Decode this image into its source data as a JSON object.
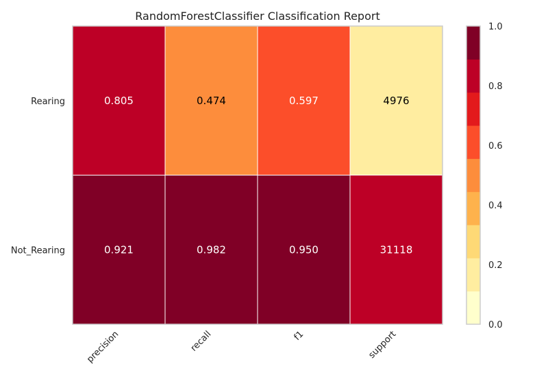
{
  "chart_data": {
    "type": "heatmap",
    "title": "RandomForestClassifier Classification Report",
    "rows": [
      "Rearing",
      "Not_Rearing"
    ],
    "columns": [
      "precision",
      "recall",
      "f1",
      "support"
    ],
    "cells": [
      [
        {
          "value": 0.805,
          "label": "0.805"
        },
        {
          "value": 0.474,
          "label": "0.474"
        },
        {
          "value": 0.597,
          "label": "0.597"
        },
        {
          "value": 0.138,
          "label": "4976"
        }
      ],
      [
        {
          "value": 0.921,
          "label": "0.921"
        },
        {
          "value": 0.982,
          "label": "0.982"
        },
        {
          "value": 0.95,
          "label": "0.950"
        },
        {
          "value": 0.862,
          "label": "31118"
        }
      ]
    ],
    "colorbar": {
      "vmin": 0.0,
      "vmax": 1.0,
      "ticks": [
        "0.0",
        "0.2",
        "0.4",
        "0.6",
        "0.8",
        "1.0"
      ],
      "colors": [
        "#ffffcc",
        "#ffeda0",
        "#fed976",
        "#feb24c",
        "#fd8d3c",
        "#fc4e2a",
        "#e31a1c",
        "#bd0026",
        "#800026"
      ]
    },
    "text_colors": {
      "dark": "#000000",
      "light": "#ffffff"
    }
  }
}
